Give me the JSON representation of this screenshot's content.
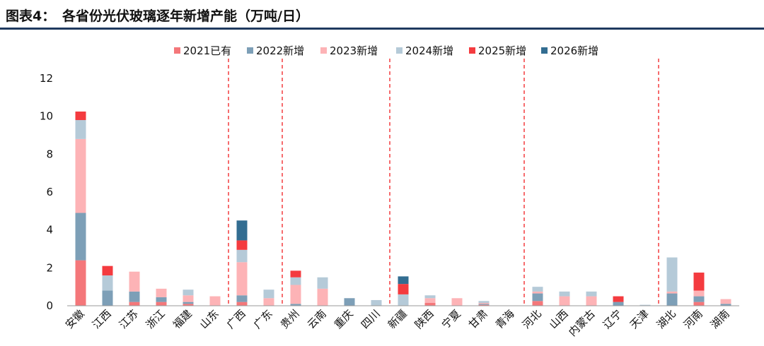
{
  "figure": {
    "label": "图表4：",
    "title": "各省份光伏玻璃逐年新增产能（万吨/日）"
  },
  "chart_data": {
    "type": "bar",
    "stacked": true,
    "title": "各省份光伏玻璃逐年新增产能（万吨/日）",
    "xlabel": "",
    "ylabel": "",
    "ylim": [
      0,
      12
    ],
    "yticks": [
      "0",
      "2",
      "4",
      "6",
      "8",
      "10",
      "12"
    ],
    "legend_position": "top",
    "grid": false,
    "categories": [
      "安徽",
      "江西",
      "江苏",
      "浙江",
      "福建",
      "山东",
      "广西",
      "广东",
      "贵州",
      "云南",
      "重庆",
      "四川",
      "新疆",
      "陕西",
      "宁夏",
      "甘肃",
      "青海",
      "河北",
      "山西",
      "内蒙古",
      "辽宁",
      "天津",
      "湖北",
      "河南",
      "湖南"
    ],
    "group_dividers_after": [
      "山东",
      "广东",
      "四川",
      "青海",
      "天津"
    ],
    "series": [
      {
        "name": "2021已有",
        "color": "#f4777a",
        "values": [
          2.4,
          0,
          0.2,
          0.2,
          0.1,
          0,
          0.2,
          0,
          0,
          0,
          0,
          0,
          0,
          0.15,
          0,
          0.05,
          0,
          0.25,
          0,
          0,
          0,
          0,
          0,
          0.2,
          0
        ]
      },
      {
        "name": "2022新增",
        "color": "#7d9fb7",
        "values": [
          2.5,
          0.8,
          0.55,
          0.25,
          0.1,
          0,
          0.35,
          0,
          0.1,
          0,
          0.4,
          0,
          0,
          0,
          0,
          0.05,
          0,
          0.4,
          0,
          0,
          0.2,
          0,
          0.65,
          0.3,
          0.1
        ]
      },
      {
        "name": "2023新增",
        "color": "#fdb3b6",
        "values": [
          3.9,
          0,
          1.05,
          0.45,
          0.35,
          0.5,
          1.75,
          0.4,
          1.0,
          0.9,
          0,
          0,
          0,
          0.25,
          0.4,
          0.05,
          0,
          0.1,
          0.5,
          0.5,
          0,
          0,
          0.1,
          0.3,
          0.25
        ]
      },
      {
        "name": "2024新增",
        "color": "#b5cad8",
        "values": [
          1.0,
          0.8,
          0,
          0,
          0.3,
          0,
          0.65,
          0.45,
          0.4,
          0.6,
          0,
          0.3,
          0.6,
          0.15,
          0,
          0.1,
          0,
          0.25,
          0.25,
          0.25,
          0,
          0.05,
          1.8,
          0,
          0
        ]
      },
      {
        "name": "2025新增",
        "color": "#f43b3f",
        "values": [
          0.45,
          0.5,
          0,
          0,
          0,
          0,
          0.5,
          0,
          0.35,
          0,
          0,
          0,
          0.55,
          0,
          0,
          0,
          0,
          0,
          0,
          0,
          0.3,
          0,
          0,
          0.95,
          0
        ]
      },
      {
        "name": "2026新增",
        "color": "#336d91",
        "values": [
          0,
          0,
          0,
          0,
          0,
          0,
          1.05,
          0,
          0,
          0,
          0,
          0,
          0.4,
          0,
          0,
          0,
          0,
          0,
          0,
          0,
          0,
          0,
          0,
          0,
          0
        ]
      }
    ]
  }
}
